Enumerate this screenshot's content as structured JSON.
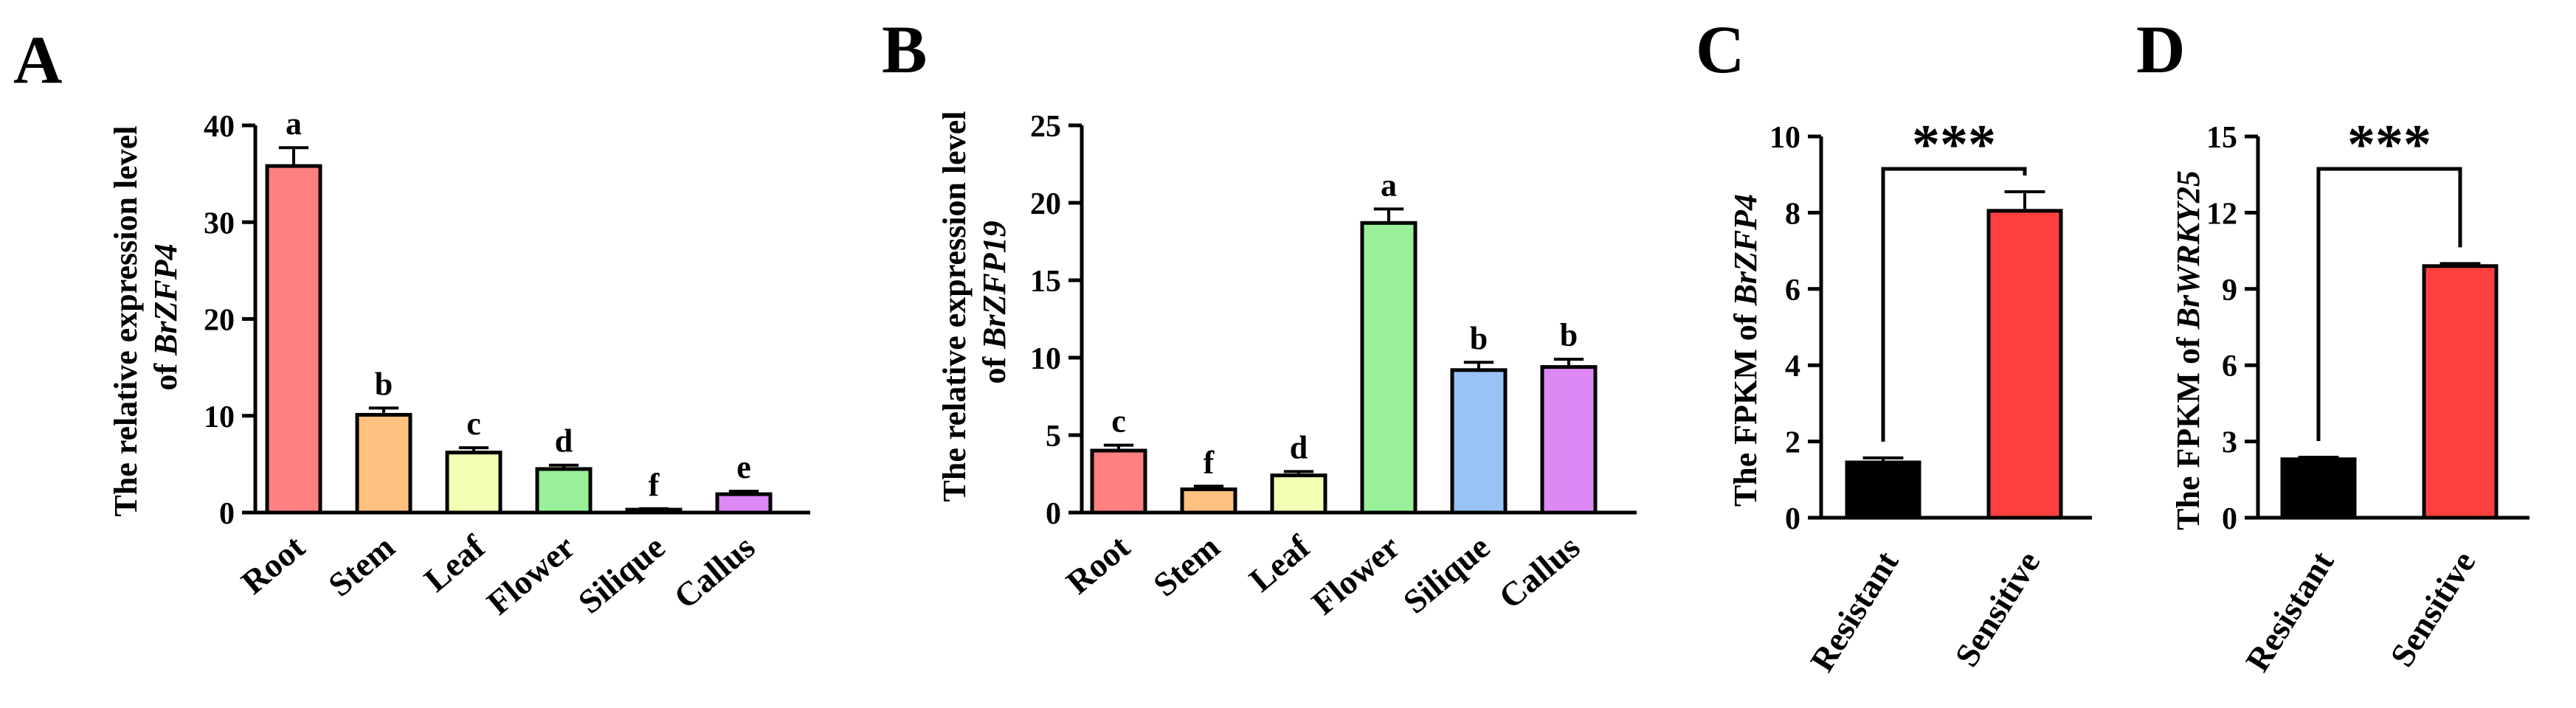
{
  "chart_data": [
    {
      "panel": "A",
      "type": "bar",
      "categories": [
        "Root",
        "Stem",
        "Leaf",
        "Flower",
        "Silique",
        "Callus"
      ],
      "values": [
        35.8,
        10.1,
        6.2,
        4.5,
        0.3,
        1.9
      ],
      "errors": [
        1.9,
        0.7,
        0.5,
        0.4,
        0.1,
        0.3
      ],
      "significance": [
        "a",
        "b",
        "c",
        "d",
        "f",
        "e"
      ],
      "colors": [
        "#ff8080",
        "#ffc080",
        "#f3ffb5",
        "#99f099",
        "#b3c8ff",
        "#dd88f5"
      ],
      "ylabel_lines": [
        "The relative expression level",
        "of "
      ],
      "ylabel_gene": "BrZFP4",
      "ylim": [
        0,
        40
      ],
      "yticks": [
        0,
        10,
        20,
        30,
        40
      ],
      "grid": false
    },
    {
      "panel": "B",
      "type": "bar",
      "categories": [
        "Root",
        "Stem",
        "Leaf",
        "Flower",
        "Silique",
        "Callus"
      ],
      "values": [
        4.0,
        1.5,
        2.4,
        18.7,
        9.2,
        9.4
      ],
      "errors": [
        0.35,
        0.2,
        0.25,
        0.9,
        0.5,
        0.5
      ],
      "significance": [
        "c",
        "f",
        "d",
        "a",
        "b",
        "b"
      ],
      "colors": [
        "#ff8080",
        "#ffc080",
        "#f3ffb5",
        "#99f099",
        "#99c2f5",
        "#dd88f5"
      ],
      "ylabel_lines": [
        "The relative expression level",
        "of "
      ],
      "ylabel_gene": "BrZFP19",
      "ylim": [
        0,
        25
      ],
      "yticks": [
        0,
        5,
        10,
        15,
        20,
        25
      ],
      "grid": false
    },
    {
      "panel": "C",
      "type": "bar",
      "categories": [
        "Resistant",
        "Sensitive"
      ],
      "values": [
        1.45,
        8.05
      ],
      "errors": [
        0.12,
        0.5
      ],
      "colors": [
        "#000000",
        "#ff4040"
      ],
      "significance_bracket": "***",
      "ylabel_prefix": "The FPKM of ",
      "ylabel_gene": "BrZFP4",
      "ylim": [
        0,
        10
      ],
      "yticks": [
        0,
        2,
        4,
        6,
        8,
        10
      ],
      "grid": false
    },
    {
      "panel": "D",
      "type": "bar",
      "categories": [
        "Resistant",
        "Sensitive"
      ],
      "values": [
        2.3,
        9.9
      ],
      "errors": [
        0.08,
        0.1
      ],
      "colors": [
        "#000000",
        "#ff4040"
      ],
      "significance_bracket": "***",
      "ylabel_prefix": "The FPKM of ",
      "ylabel_gene": "BrWRKY25",
      "ylim": [
        0,
        15
      ],
      "yticks": [
        0,
        3,
        6,
        9,
        12,
        15
      ],
      "grid": false
    }
  ]
}
